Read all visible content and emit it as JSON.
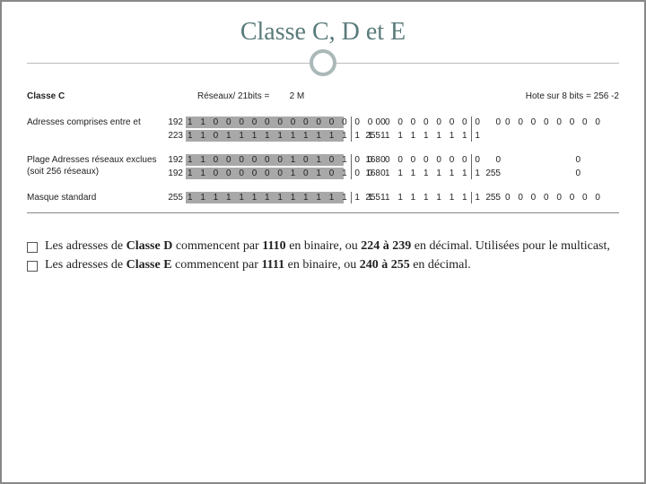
{
  "title": "Classe C, D et E",
  "header": {
    "classLabel": "Classe C",
    "reseaux": "Réseaux/ 21bits =",
    "reseauxVal": "2 M",
    "hote": "Hote sur  8 bits = 256 -2"
  },
  "rows": [
    {
      "label": "Adresses comprises entre et",
      "lines": [
        {
          "segs": [
            {
              "dec": "192",
              "bits": "1 1 0 0 0 0 0 0 0 0 0 0 0 0 0 0",
              "bg": true
            },
            {
              "dec": "0",
              "bits": "0 0 0 0 0 0 0 0",
              "bg": false
            },
            {
              "dec": "0",
              "bits": "0 0 0 0 0 0 0 0",
              "bg": false
            }
          ]
        },
        {
          "segs": [
            {
              "dec": "223",
              "bits": "1 1 0 1 1 1 1 1 1 1 1 1 1 1 1 1",
              "bg": true
            },
            {
              "dec": "255",
              "bits": "1 1 1 1 1 1 1 1",
              "bg": false
            },
            {
              "dec": "",
              "bits": "",
              "bg": false
            }
          ]
        }
      ]
    },
    {
      "label": "Plage Adresses réseaux exclues (soit 256 réseaux)",
      "lines": [
        {
          "segs": [
            {
              "dec": "192",
              "bits": "1 1 0 0 0 0 0 0 1 0 1 0 1 0 0 0",
              "bg": true
            },
            {
              "dec": "168",
              "bits": "0 0 0 0 0 0 0 0",
              "bg": false
            },
            {
              "dec": "0",
              "bits": "0",
              "bg": false,
              "plain": true
            }
          ]
        },
        {
          "segs": [
            {
              "dec": "192",
              "bits": "1 1 0 0 0 0 0 0 1 0 1 0 1 0 0 0",
              "bg": true
            },
            {
              "dec": "168",
              "bits": "1 1 1 1 1 1 1 1",
              "bg": false
            },
            {
              "dec": "255",
              "bits": "0",
              "bg": false,
              "plain": true
            }
          ]
        }
      ]
    },
    {
      "label": "Masque standard",
      "lines": [
        {
          "segs": [
            {
              "dec": "255",
              "bits": "1 1 1 1 1 1 1 1 1 1 1 1 1 1 1 1",
              "bg": true
            },
            {
              "dec": "255",
              "bits": "1 1 1 1 1 1 1 1",
              "bg": false
            },
            {
              "dec": "255",
              "bits": "0 0 0 0 0 0 0 0",
              "bg": false
            }
          ]
        }
      ]
    }
  ],
  "colWidths": {
    "seg1bits": 172,
    "seg2bits": 86,
    "seg3bits": 86
  },
  "bullets": [
    {
      "html": "Les adresses de <b>Classe D</b> commencent par <b>1110</b> en binaire, ou <b>224 à  239</b> en décimal. Utilisées pour le multicast,"
    },
    {
      "html": "Les adresses de <b>Classe E</b> commencent par <b>1111</b> en binaire, ou <b>240 à  255</b> en décimal."
    }
  ]
}
